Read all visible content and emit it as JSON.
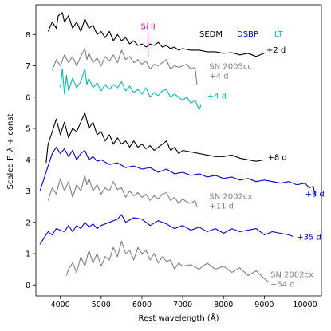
{
  "chart_data": {
    "type": "line",
    "xlabel": "Rest wavelength (Å)",
    "ylabel": "Scaled F_λ + const",
    "xlim": [
      3400,
      10400
    ],
    "ylim": [
      -0.35,
      8.95
    ],
    "xticks": [
      4000,
      5000,
      6000,
      7000,
      8000,
      9000,
      10000
    ],
    "yticks": [
      0,
      1,
      2,
      3,
      4,
      5,
      6,
      7,
      8
    ],
    "grid": false,
    "legend": {
      "placement": "top-right",
      "entries": [
        {
          "label": "SEDM",
          "color": "#000000"
        },
        {
          "label": "DSBP",
          "color": "#0000dd"
        },
        {
          "label": "LT",
          "color": "#00bbbb"
        }
      ]
    },
    "line_marker": {
      "label": "Si II",
      "x": 6150,
      "y_range": [
        7.3,
        8.1
      ],
      "color": "#cc00cc"
    },
    "series": [
      {
        "color": "#000000",
        "annotation": "+2 d",
        "anno_at": [
          9050,
          7.42
        ],
        "x": [
          3700,
          3800,
          3900,
          3950,
          4050,
          4100,
          4200,
          4300,
          4400,
          4500,
          4600,
          4700,
          4800,
          4900,
          5000,
          5100,
          5200,
          5300,
          5400,
          5500,
          5600,
          5700,
          5800,
          5900,
          6000,
          6100,
          6200,
          6300,
          6400,
          6500,
          6600,
          6700,
          6800,
          6900,
          7000,
          7200,
          7400,
          7600,
          7800,
          8000,
          8200,
          8400,
          8600,
          8800,
          9000
        ],
        "y": [
          8.1,
          8.4,
          8.2,
          8.6,
          8.7,
          8.4,
          8.6,
          8.2,
          8.4,
          8.1,
          8.5,
          8.2,
          8.3,
          8.0,
          8.1,
          7.9,
          8.1,
          7.8,
          8.0,
          7.8,
          7.9,
          7.7,
          7.8,
          7.65,
          7.7,
          7.6,
          7.7,
          7.65,
          7.75,
          7.6,
          7.65,
          7.55,
          7.6,
          7.5,
          7.55,
          7.5,
          7.5,
          7.45,
          7.45,
          7.4,
          7.42,
          7.35,
          7.4,
          7.3,
          7.4
        ]
      },
      {
        "color": "#808080",
        "annotation": "SN 2005cc\n+4 d",
        "anno_at": [
          7650,
          6.9
        ],
        "x": [
          3800,
          3900,
          4000,
          4100,
          4200,
          4300,
          4400,
          4500,
          4600,
          4650,
          4700,
          4800,
          4900,
          5000,
          5100,
          5200,
          5300,
          5400,
          5500,
          5600,
          5700,
          5800,
          5900,
          6000,
          6100,
          6200,
          6300,
          6400,
          6500,
          6600,
          6700,
          6800,
          6900,
          7000,
          7100,
          7200,
          7300,
          7350
        ],
        "y": [
          6.85,
          7.2,
          7.0,
          7.35,
          7.1,
          7.3,
          7.0,
          7.3,
          7.55,
          7.2,
          7.4,
          7.1,
          7.25,
          7.0,
          7.3,
          7.15,
          7.35,
          7.1,
          7.5,
          7.2,
          7.3,
          7.1,
          7.2,
          7.05,
          7.15,
          6.9,
          7.05,
          7.0,
          7.1,
          7.2,
          6.9,
          7.0,
          6.95,
          7.0,
          7.05,
          6.9,
          6.95,
          6.4
        ]
      },
      {
        "color": "#00bbbb",
        "annotation": "+4 d",
        "anno_at": [
          7600,
          5.95
        ],
        "x": [
          4000,
          4050,
          4100,
          4150,
          4200,
          4300,
          4400,
          4500,
          4600,
          4650,
          4700,
          4800,
          4900,
          5000,
          5100,
          5200,
          5300,
          5400,
          5500,
          5600,
          5700,
          5800,
          5900,
          6000,
          6100,
          6200,
          6300,
          6400,
          6500,
          6600,
          6700,
          6800,
          6900,
          7000,
          7100,
          7200,
          7300,
          7400,
          7450
        ],
        "y": [
          6.3,
          6.9,
          6.1,
          6.7,
          6.2,
          6.6,
          6.3,
          6.5,
          6.9,
          6.4,
          6.6,
          6.3,
          6.45,
          6.2,
          6.4,
          6.25,
          6.4,
          6.3,
          6.5,
          6.2,
          6.35,
          6.15,
          6.25,
          6.1,
          6.3,
          6.0,
          6.15,
          6.05,
          6.2,
          6.25,
          6.0,
          6.1,
          6.0,
          5.9,
          6.0,
          5.8,
          5.9,
          5.6,
          5.75
        ]
      },
      {
        "color": "#000000",
        "annotation": "+8 d",
        "anno_at": [
          9080,
          4.0
        ],
        "x": [
          3650,
          3700,
          3800,
          3900,
          4000,
          4100,
          4200,
          4300,
          4400,
          4500,
          4600,
          4700,
          4800,
          4900,
          5000,
          5100,
          5200,
          5300,
          5400,
          5500,
          5600,
          5700,
          5800,
          5900,
          6000,
          6100,
          6200,
          6300,
          6400,
          6500,
          6600,
          6700,
          6800,
          6900,
          7000,
          7200,
          7400,
          7600,
          7800,
          8000,
          8200,
          8400,
          8600,
          8800,
          9000
        ],
        "y": [
          3.9,
          4.5,
          4.9,
          5.3,
          4.8,
          5.2,
          4.7,
          5.0,
          4.9,
          5.2,
          5.5,
          5.0,
          5.2,
          4.8,
          4.9,
          4.6,
          4.8,
          4.5,
          4.7,
          4.5,
          4.6,
          4.4,
          4.6,
          4.4,
          4.5,
          4.35,
          4.45,
          4.3,
          4.4,
          4.5,
          4.6,
          4.3,
          4.4,
          4.2,
          4.3,
          4.25,
          4.2,
          4.15,
          4.1,
          4.1,
          4.15,
          4.05,
          4.0,
          3.95,
          4.0
        ]
      },
      {
        "color": "#0000dd",
        "annotation": "+8 d",
        "anno_at": [
          10000,
          2.82
        ],
        "x": [
          3500,
          3600,
          3700,
          3800,
          3900,
          4000,
          4100,
          4200,
          4300,
          4400,
          4500,
          4600,
          4700,
          4800,
          4900,
          5000,
          5200,
          5400,
          5600,
          5800,
          6000,
          6200,
          6400,
          6600,
          6800,
          7000,
          7200,
          7400,
          7600,
          7800,
          8000,
          8200,
          8400,
          8600,
          8800,
          9000,
          9200,
          9400,
          9600,
          9800,
          10000,
          10100,
          10200,
          10250
        ],
        "y": [
          3.0,
          3.4,
          3.8,
          4.2,
          4.4,
          4.2,
          4.35,
          4.1,
          4.3,
          4.0,
          4.2,
          4.3,
          4.0,
          4.1,
          3.95,
          4.0,
          3.85,
          3.9,
          3.75,
          3.8,
          3.7,
          3.75,
          3.6,
          3.7,
          3.55,
          3.6,
          3.5,
          3.55,
          3.45,
          3.5,
          3.4,
          3.45,
          3.35,
          3.4,
          3.3,
          3.35,
          3.3,
          3.25,
          3.3,
          3.2,
          3.25,
          3.1,
          3.15,
          2.85
        ]
      },
      {
        "color": "#808080",
        "annotation": "SN 2002cx\n+11 d",
        "anno_at": [
          7650,
          2.75
        ],
        "x": [
          3700,
          3800,
          3900,
          4000,
          4100,
          4200,
          4300,
          4400,
          4500,
          4600,
          4650,
          4700,
          4800,
          4900,
          5000,
          5100,
          5200,
          5300,
          5400,
          5500,
          5600,
          5700,
          5800,
          5900,
          6000,
          6100,
          6200,
          6300,
          6400,
          6500,
          6600,
          6700,
          6800,
          6900,
          7000,
          7100,
          7200,
          7300,
          7350
        ],
        "y": [
          2.7,
          3.1,
          2.9,
          3.4,
          3.0,
          3.3,
          2.8,
          3.2,
          3.0,
          3.5,
          3.2,
          3.4,
          3.0,
          3.2,
          2.9,
          3.1,
          3.0,
          3.3,
          3.05,
          3.1,
          2.8,
          3.0,
          2.85,
          2.95,
          2.8,
          2.9,
          2.7,
          2.85,
          2.75,
          2.9,
          2.95,
          2.7,
          2.8,
          2.6,
          2.75,
          2.65,
          2.6,
          2.7,
          2.5
        ]
      },
      {
        "color": "#0000dd",
        "annotation": "+35 d",
        "anno_at": [
          9800,
          1.45
        ],
        "x": [
          3500,
          3600,
          3700,
          3800,
          3900,
          4000,
          4100,
          4200,
          4300,
          4400,
          4500,
          4600,
          4700,
          4800,
          4900,
          5000,
          5200,
          5400,
          5500,
          5600,
          5800,
          6000,
          6200,
          6400,
          6600,
          6800,
          7000,
          7200,
          7400,
          7600,
          7800,
          8000,
          8200,
          8400,
          8600,
          8800,
          9000,
          9200,
          9400,
          9600,
          9700
        ],
        "y": [
          1.3,
          1.5,
          1.7,
          1.6,
          1.8,
          1.75,
          1.7,
          1.9,
          1.7,
          1.9,
          1.8,
          2.0,
          1.85,
          1.95,
          1.8,
          1.9,
          2.0,
          2.1,
          2.25,
          2.0,
          2.15,
          2.1,
          1.9,
          2.05,
          1.95,
          1.8,
          1.9,
          1.75,
          1.85,
          1.7,
          1.8,
          1.65,
          1.8,
          1.7,
          1.75,
          1.8,
          1.6,
          1.7,
          1.65,
          1.6,
          1.55
        ]
      },
      {
        "color": "#808080",
        "annotation": "SN 2002cx\n+54 d",
        "anno_at": [
          9150,
          0.25
        ],
        "x": [
          4150,
          4200,
          4300,
          4400,
          4500,
          4600,
          4700,
          4800,
          4900,
          5000,
          5100,
          5200,
          5300,
          5400,
          5500,
          5600,
          5700,
          5800,
          5900,
          6000,
          6100,
          6200,
          6300,
          6400,
          6500,
          6600,
          6700,
          6800,
          6900,
          7000,
          7200,
          7400,
          7600,
          7800,
          8000,
          8200,
          8400,
          8600,
          8800,
          9000,
          9100
        ],
        "y": [
          0.3,
          0.5,
          0.7,
          0.4,
          0.9,
          0.6,
          1.1,
          0.7,
          1.0,
          0.6,
          0.9,
          0.8,
          1.2,
          0.9,
          1.4,
          1.0,
          1.1,
          0.8,
          1.2,
          1.0,
          1.1,
          0.8,
          1.0,
          0.7,
          0.9,
          0.75,
          0.8,
          0.5,
          0.7,
          0.6,
          0.65,
          0.5,
          0.7,
          0.5,
          0.6,
          0.4,
          0.55,
          0.3,
          0.45,
          0.2,
          0.1
        ]
      }
    ]
  }
}
